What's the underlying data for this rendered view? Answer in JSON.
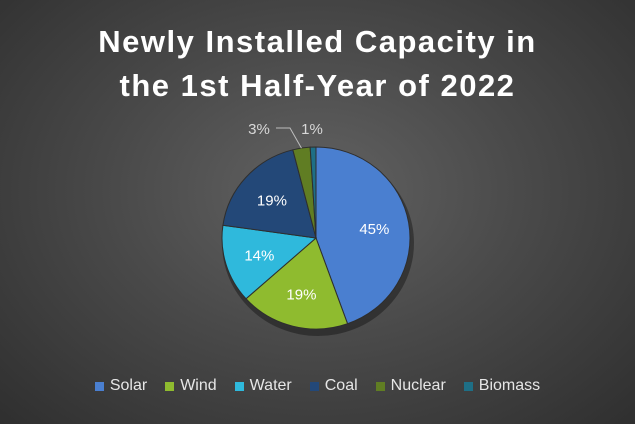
{
  "chart_data": {
    "type": "pie",
    "title": [
      "Newly Installed Capacity in",
      "the 1st Half-Year of 2022"
    ],
    "categories": [
      "Solar",
      "Wind",
      "Water",
      "Coal",
      "Nuclear",
      "Biomass"
    ],
    "values": [
      45,
      19,
      14,
      19,
      3,
      1
    ],
    "labels": [
      "45%",
      "19%",
      "14%",
      "19%",
      "3%",
      "1%"
    ],
    "colors": [
      "#4a7fd0",
      "#8fbb2f",
      "#2fb9dc",
      "#234878",
      "#607d23",
      "#1e6f86"
    ],
    "legend": "bottom"
  }
}
